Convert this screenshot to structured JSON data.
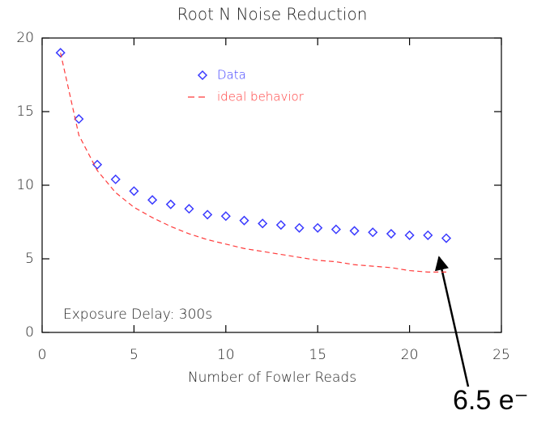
{
  "chart_data": {
    "type": "scatter",
    "title": "Root N Noise Reduction",
    "x_label": "Number of Fowler Reads",
    "x": [
      1,
      2,
      3,
      4,
      5,
      6,
      7,
      8,
      9,
      10,
      11,
      12,
      13,
      14,
      15,
      16,
      17,
      18,
      19,
      20,
      21,
      22
    ],
    "series": [
      {
        "name": "Data",
        "color": "#3a3aff",
        "marker": "diamond",
        "values": [
          19.0,
          14.5,
          11.4,
          10.4,
          9.6,
          9.0,
          8.7,
          8.4,
          8.0,
          7.9,
          7.6,
          7.4,
          7.3,
          7.1,
          7.1,
          7.0,
          6.9,
          6.8,
          6.7,
          6.6,
          6.6,
          6.4
        ]
      },
      {
        "name": "ideal behavior",
        "color": "#ff3b3b",
        "marker": "dashed-line",
        "values": [
          19.0,
          13.4,
          11.0,
          9.5,
          8.5,
          7.8,
          7.2,
          6.7,
          6.3,
          6.0,
          5.7,
          5.5,
          5.3,
          5.1,
          4.9,
          4.8,
          4.6,
          4.5,
          4.4,
          4.2,
          4.1,
          4.1
        ]
      }
    ],
    "xlim": [
      0,
      25
    ],
    "ylim": [
      0,
      20
    ],
    "xticks": [
      0,
      5,
      10,
      15,
      20,
      25
    ],
    "yticks": [
      0,
      5,
      10,
      15,
      20
    ],
    "legend": "upper center",
    "note": "Exposure Delay: 300s",
    "annotation": "6.5 e⁻"
  }
}
